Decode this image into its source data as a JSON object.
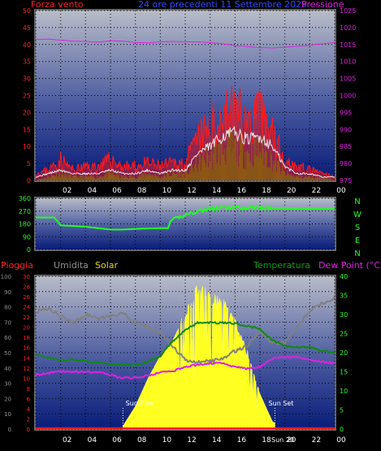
{
  "colors": {
    "background": "#000000",
    "plot_top": "#b8bcc8",
    "plot_bottom": "#0a1f7a",
    "frame": "#888888",
    "grid": "#000000",
    "red": "#ff1a1a",
    "white": "#e8e8e8",
    "green": "#109c10",
    "magenta": "#e020e0",
    "blue": "#2040ff",
    "yellow": "#ffff22",
    "gray": "#808080",
    "bright_green": "#22ff22",
    "dark_green": "#108a10",
    "tick_text": "#ffffff"
  },
  "panel1": {
    "left_title": "Forza vento",
    "center_title": "24 ore precedenti 11 Settembre 2023",
    "right_title": "Pressione",
    "left_ticks": [
      "50",
      "45",
      "40",
      "35",
      "30",
      "25",
      "20",
      "15",
      "10",
      "5",
      "0"
    ],
    "right_ticks": [
      "1025",
      "1020",
      "1015",
      "1010",
      "1005",
      "1000",
      "995",
      "990",
      "985",
      "980",
      "975"
    ],
    "x_ticks": [
      "00",
      "02",
      "04",
      "06",
      "08",
      "10",
      "12",
      "14",
      "16",
      "18",
      "20",
      "22",
      "00"
    ]
  },
  "panel2": {
    "left_ticks": [
      "360",
      "270",
      "180",
      "90",
      "0"
    ],
    "right_letters": [
      "N",
      "W",
      "S",
      "E",
      "N"
    ]
  },
  "panel3": {
    "labels": {
      "rain": "Pioggia",
      "humidity": "Umidita",
      "solar": "Solar",
      "temperature": "Temperatura",
      "dewpoint": "Dew Point (°C)"
    },
    "humidity_ticks": [
      "100",
      "90",
      "80",
      "70",
      "60",
      "50",
      "40",
      "30",
      "20",
      "10",
      "0"
    ],
    "rain_ticks": [
      "30",
      "28",
      "26",
      "24",
      "22",
      "20",
      "18",
      "16",
      "14",
      "12",
      "10",
      "8",
      "6",
      "4",
      "2",
      "0"
    ],
    "temp_ticks": [
      "40",
      "35",
      "30",
      "25",
      "20",
      "15",
      "10",
      "5",
      "0"
    ],
    "x_ticks": [
      "00",
      "02",
      "04",
      "06",
      "08",
      "10",
      "12",
      "14",
      "16",
      "18",
      "20",
      "22",
      "00"
    ],
    "sunrise_label": "Sun Rise",
    "sunset_label": "Sun Set",
    "x_extra_tick": "Sun 20"
  },
  "chart_data": [
    {
      "type": "line",
      "title": "24 ore precedenti 11 Settembre 2023",
      "x_unit": "hour",
      "x": [
        0,
        1,
        2,
        3,
        4,
        5,
        6,
        7,
        8,
        9,
        10,
        11,
        12,
        13,
        14,
        15,
        16,
        17,
        18,
        19,
        20,
        21,
        22,
        23,
        24
      ],
      "series": [
        {
          "name": "Forza vento",
          "axis": "left",
          "color": "red",
          "values": [
            2,
            3,
            6,
            3,
            4,
            4,
            6,
            4,
            4,
            5,
            4,
            5,
            5,
            12,
            15,
            19,
            20,
            17,
            19,
            14,
            6,
            4,
            3,
            2,
            1
          ]
        },
        {
          "name": "Pressione",
          "axis": "right",
          "color": "magenta",
          "values": [
            1016.5,
            1016.6,
            1016.3,
            1016.0,
            1015.9,
            1015.7,
            1016.1,
            1016.0,
            1015.6,
            1015.5,
            1015.8,
            1015.9,
            1015.8,
            1015.8,
            1015.6,
            1015.2,
            1014.7,
            1014.4,
            1014.1,
            1014.0,
            1014.2,
            1014.5,
            1014.8,
            1015.2,
            1015.6
          ]
        },
        {
          "name": "",
          "axis": "left",
          "color": "white",
          "values": [
            1,
            2,
            3,
            2,
            2,
            2,
            3,
            2,
            2,
            3,
            2,
            3,
            3,
            8,
            10,
            13,
            14,
            12,
            13,
            10,
            4,
            2,
            2,
            1,
            1
          ]
        },
        {
          "name": "",
          "axis": "left",
          "color": "green",
          "values": [
            0,
            1,
            2,
            1,
            1,
            1,
            2,
            1,
            1,
            2,
            1,
            2,
            2,
            5,
            7,
            9,
            10,
            8,
            9,
            6,
            2,
            1,
            1,
            1,
            0
          ]
        }
      ],
      "ylim_left": [
        0,
        50
      ],
      "ylim_right": [
        975,
        1025
      ]
    },
    {
      "type": "line",
      "x_unit": "hour",
      "x": [
        0,
        1,
        1.5,
        2,
        3,
        4,
        5,
        6,
        7,
        8,
        9,
        10,
        10.5,
        11,
        12,
        13,
        14,
        15,
        16,
        17,
        18,
        19,
        20,
        21,
        22,
        23,
        24
      ],
      "series": [
        {
          "name": "",
          "color": "bright_green",
          "values": [
            225,
            225,
            225,
            170,
            165,
            160,
            150,
            140,
            140,
            145,
            148,
            150,
            150,
            205,
            245,
            270,
            285,
            290,
            292,
            295,
            295,
            292,
            292,
            290,
            290,
            290,
            290
          ]
        }
      ],
      "ylim": [
        0,
        360
      ]
    },
    {
      "type": "area",
      "x_unit": "hour",
      "x": [
        0,
        1,
        2,
        3,
        4,
        5,
        6,
        7,
        8,
        9,
        10,
        11,
        12,
        13,
        14,
        15,
        16,
        17,
        18,
        19,
        20,
        21,
        22,
        23,
        24
      ],
      "series": [
        {
          "name": "Umidita",
          "axis": "humidity",
          "color": "gray",
          "values": [
            77,
            79,
            74,
            69,
            75,
            72,
            74,
            76,
            69,
            67,
            63,
            54,
            45,
            44,
            44,
            46,
            51,
            55,
            64,
            56,
            57,
            67,
            78,
            82,
            86
          ]
        },
        {
          "name": "Solar",
          "axis": "humidity",
          "color": "yellow",
          "values": [
            0,
            0,
            0,
            0,
            0,
            0,
            0,
            2,
            15,
            33,
            48,
            58,
            75,
            93,
            88,
            84,
            70,
            50,
            23,
            5,
            0,
            0,
            0,
            0,
            0
          ]
        },
        {
          "name": "Temperatura",
          "axis": "temp",
          "color": "dark_green",
          "values": [
            19.5,
            18.7,
            18.0,
            18.2,
            17.8,
            17.3,
            17.0,
            16.9,
            16.6,
            17.6,
            19.1,
            23.0,
            26.0,
            27.8,
            27.9,
            27.8,
            27.7,
            27.0,
            26.2,
            23.3,
            21.7,
            21.4,
            21.4,
            20.5,
            20.0
          ]
        },
        {
          "name": "Dew Point (°C)",
          "axis": "temp",
          "color": "magenta",
          "values": [
            14.2,
            14.6,
            15.1,
            15.0,
            15.0,
            14.9,
            14.2,
            13.3,
            13.5,
            14.0,
            14.8,
            15.2,
            16.2,
            16.9,
            17.2,
            17.2,
            16.3,
            15.8,
            16.4,
            18.4,
            18.9,
            18.8,
            18.1,
            17.6,
            17.3
          ]
        },
        {
          "name": "Pioggia",
          "axis": "rain",
          "color": "red",
          "values": [
            0,
            0,
            0,
            0,
            0,
            0,
            0,
            0,
            0,
            0,
            0,
            0,
            0,
            0,
            0,
            0,
            0,
            0,
            0,
            0,
            0,
            0,
            0,
            0,
            0
          ]
        }
      ],
      "ylim_humidity": [
        0,
        100
      ],
      "ylim_rain": [
        0,
        30
      ],
      "ylim_temp": [
        0,
        40
      ],
      "annotations": [
        "Sun Rise",
        "Sun Set"
      ]
    }
  ]
}
